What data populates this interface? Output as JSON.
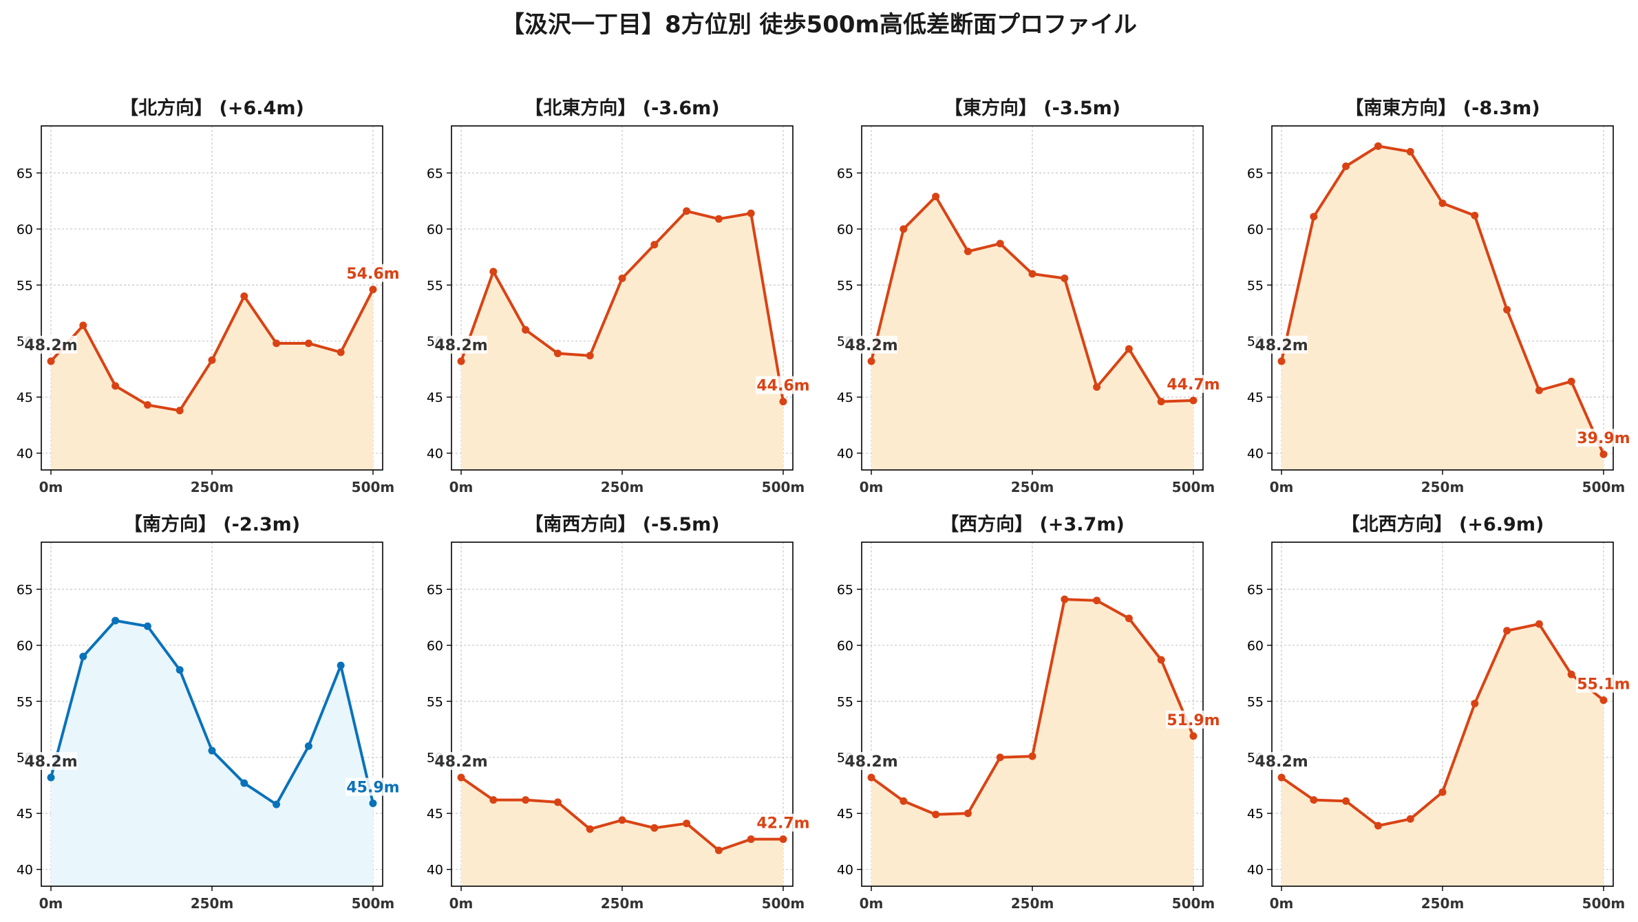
{
  "title": "【汲沢一丁目】8方位別 徒歩500m高低差断面プロファイル",
  "colors": {
    "descent": "#d94314",
    "descent_fill": "#fdebd0",
    "ascent_south": "#0a72ba",
    "ascent_fill": "#e9f6fc",
    "start_label": "#333333"
  },
  "chart_data": [
    {
      "type": "area",
      "title": "【北方向】 (+6.4m)",
      "x": [
        0,
        50,
        100,
        150,
        200,
        250,
        300,
        350,
        400,
        450,
        500
      ],
      "y": [
        48.2,
        51.4,
        46.0,
        44.3,
        43.8,
        48.3,
        54.0,
        49.8,
        49.8,
        49.0,
        54.6
      ],
      "start_label": "48.2m",
      "end_label": "54.6m",
      "color": "#d94314",
      "fill": "#fdebd0",
      "xticks": [
        "0m",
        "250m",
        "500m"
      ],
      "yticks": [
        40,
        45,
        50,
        55,
        60,
        65
      ],
      "ylim": [
        38.5,
        69.2
      ],
      "xlim": [
        -15,
        515
      ],
      "grid": true
    },
    {
      "type": "area",
      "title": "【北東方向】 (-3.6m)",
      "x": [
        0,
        50,
        100,
        150,
        200,
        250,
        300,
        350,
        400,
        450,
        500
      ],
      "y": [
        48.2,
        56.2,
        51.0,
        48.9,
        48.7,
        55.6,
        58.6,
        61.6,
        60.9,
        61.4,
        44.6
      ],
      "start_label": "48.2m",
      "end_label": "44.6m",
      "color": "#d94314",
      "fill": "#fdebd0",
      "xticks": [
        "0m",
        "250m",
        "500m"
      ],
      "yticks": [
        40,
        45,
        50,
        55,
        60,
        65
      ],
      "ylim": [
        38.5,
        69.2
      ],
      "xlim": [
        -15,
        515
      ],
      "grid": true
    },
    {
      "type": "area",
      "title": "【東方向】 (-3.5m)",
      "x": [
        0,
        50,
        100,
        150,
        200,
        250,
        300,
        350,
        400,
        450,
        500
      ],
      "y": [
        48.2,
        60.0,
        62.9,
        58.0,
        58.7,
        56.0,
        55.6,
        45.9,
        49.3,
        44.6,
        44.7
      ],
      "start_label": "48.2m",
      "end_label": "44.7m",
      "color": "#d94314",
      "fill": "#fdebd0",
      "xticks": [
        "0m",
        "250m",
        "500m"
      ],
      "yticks": [
        40,
        45,
        50,
        55,
        60,
        65
      ],
      "ylim": [
        38.5,
        69.2
      ],
      "xlim": [
        -15,
        515
      ],
      "grid": true
    },
    {
      "type": "area",
      "title": "【南東方向】 (-8.3m)",
      "x": [
        0,
        50,
        100,
        150,
        200,
        250,
        300,
        350,
        400,
        450,
        500
      ],
      "y": [
        48.2,
        61.1,
        65.6,
        67.4,
        66.9,
        62.3,
        61.2,
        52.8,
        45.6,
        46.4,
        39.9
      ],
      "start_label": "48.2m",
      "end_label": "39.9m",
      "color": "#d94314",
      "fill": "#fdebd0",
      "xticks": [
        "0m",
        "250m",
        "500m"
      ],
      "yticks": [
        40,
        45,
        50,
        55,
        60,
        65
      ],
      "ylim": [
        38.5,
        69.2
      ],
      "xlim": [
        -15,
        515
      ],
      "grid": true
    },
    {
      "type": "area",
      "title": "【南方向】 (-2.3m)",
      "x": [
        0,
        50,
        100,
        150,
        200,
        250,
        300,
        350,
        400,
        450,
        500
      ],
      "y": [
        48.2,
        59.0,
        62.2,
        61.7,
        57.8,
        50.6,
        47.7,
        45.8,
        51.0,
        58.2,
        45.9
      ],
      "start_label": "48.2m",
      "end_label": "45.9m",
      "color": "#0a72ba",
      "fill": "#e9f6fc",
      "xticks": [
        "0m",
        "250m",
        "500m"
      ],
      "yticks": [
        40,
        45,
        50,
        55,
        60,
        65
      ],
      "ylim": [
        38.5,
        69.2
      ],
      "xlim": [
        -15,
        515
      ],
      "grid": true
    },
    {
      "type": "area",
      "title": "【南西方向】 (-5.5m)",
      "x": [
        0,
        50,
        100,
        150,
        200,
        250,
        300,
        350,
        400,
        450,
        500
      ],
      "y": [
        48.2,
        46.2,
        46.2,
        46.0,
        43.6,
        44.4,
        43.7,
        44.1,
        41.7,
        42.7,
        42.7
      ],
      "start_label": "48.2m",
      "end_label": "42.7m",
      "color": "#d94314",
      "fill": "#fdebd0",
      "xticks": [
        "0m",
        "250m",
        "500m"
      ],
      "yticks": [
        40,
        45,
        50,
        55,
        60,
        65
      ],
      "ylim": [
        38.5,
        69.2
      ],
      "xlim": [
        -15,
        515
      ],
      "grid": true
    },
    {
      "type": "area",
      "title": "【西方向】 (+3.7m)",
      "x": [
        0,
        50,
        100,
        150,
        200,
        250,
        300,
        350,
        400,
        450,
        500
      ],
      "y": [
        48.2,
        46.1,
        44.9,
        45.0,
        50.0,
        50.1,
        64.1,
        64.0,
        62.4,
        58.7,
        51.9
      ],
      "start_label": "48.2m",
      "end_label": "51.9m",
      "color": "#d94314",
      "fill": "#fdebd0",
      "xticks": [
        "0m",
        "250m",
        "500m"
      ],
      "yticks": [
        40,
        45,
        50,
        55,
        60,
        65
      ],
      "ylim": [
        38.5,
        69.2
      ],
      "xlim": [
        -15,
        515
      ],
      "grid": true
    },
    {
      "type": "area",
      "title": "【北西方向】 (+6.9m)",
      "x": [
        0,
        50,
        100,
        150,
        200,
        250,
        300,
        350,
        400,
        450,
        500
      ],
      "y": [
        48.2,
        46.2,
        46.1,
        43.9,
        44.5,
        46.9,
        54.8,
        61.3,
        61.9,
        57.4,
        55.1
      ],
      "start_label": "48.2m",
      "end_label": "55.1m",
      "color": "#d94314",
      "fill": "#fdebd0",
      "xticks": [
        "0m",
        "250m",
        "500m"
      ],
      "yticks": [
        40,
        45,
        50,
        55,
        60,
        65
      ],
      "ylim": [
        38.5,
        69.2
      ],
      "xlim": [
        -15,
        515
      ],
      "grid": true
    }
  ]
}
